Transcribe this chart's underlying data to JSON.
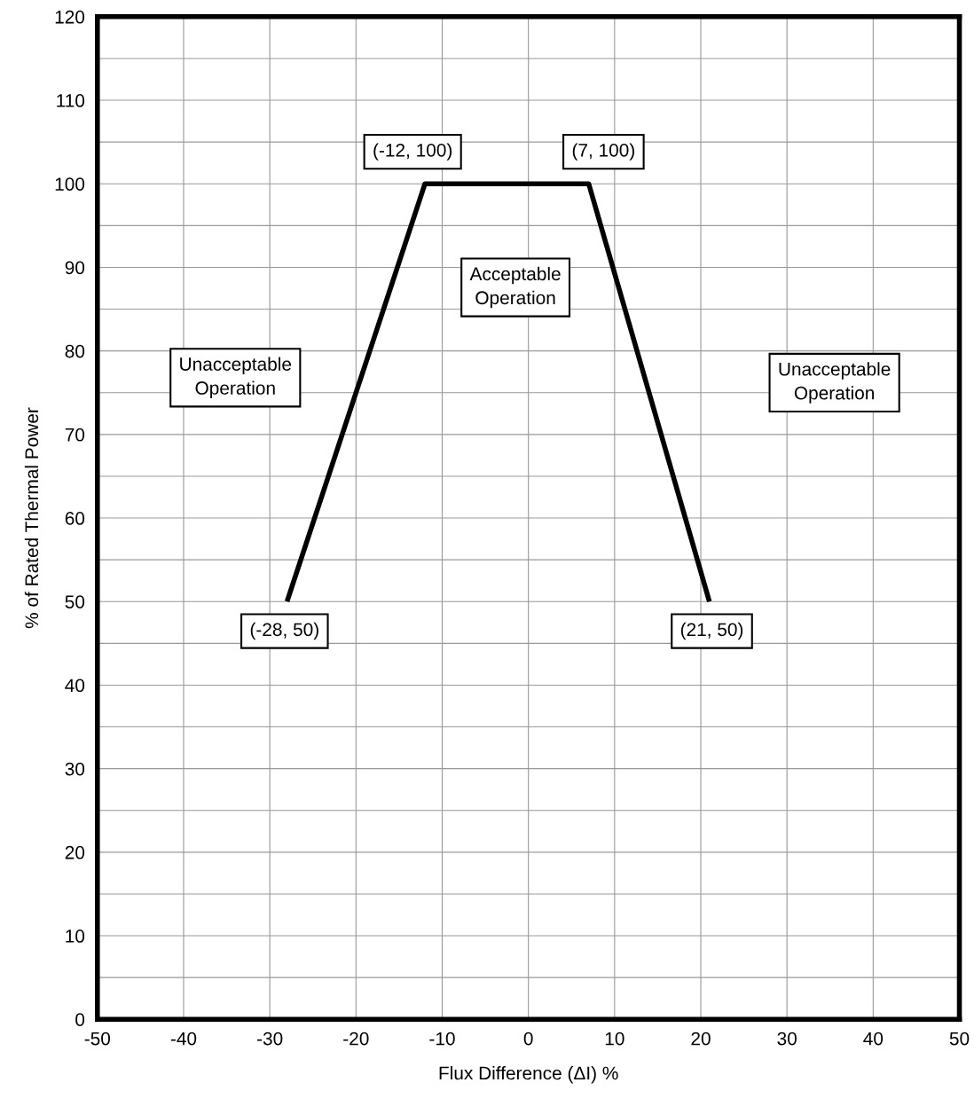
{
  "chart_data": {
    "type": "line",
    "xlabel": "Flux Difference (ΔI) %",
    "ylabel": "% of Rated Thermal Power",
    "x": [
      -28,
      -12,
      7,
      21
    ],
    "series": [
      {
        "color": "#000000",
        "values": [
          50,
          100,
          100,
          50
        ]
      }
    ],
    "xlim": [
      -50,
      50
    ],
    "xticks": [
      -50,
      -40,
      -30,
      -20,
      -10,
      0,
      10,
      20,
      30,
      40,
      50
    ],
    "ylim": [
      0,
      120
    ],
    "yticks": [
      0,
      {
        "value": 5,
        "label": null
      },
      10,
      {
        "value": 15,
        "label": null
      },
      20,
      {
        "value": 25,
        "label": null
      },
      30,
      {
        "value": 35,
        "label": null
      },
      40,
      {
        "value": 45,
        "label": null
      },
      50,
      {
        "value": 55,
        "label": null
      },
      60,
      {
        "value": 65,
        "label": null
      },
      70,
      {
        "value": 75,
        "label": null
      },
      80,
      {
        "value": 85,
        "label": null
      },
      90,
      {
        "value": 95,
        "label": null
      },
      100,
      {
        "value": 105,
        "label": null
      },
      110,
      {
        "value": 115,
        "label": null
      },
      120
    ],
    "grid": true,
    "marker": "none",
    "line_style": "solid",
    "legend": false,
    "annotations": [
      {
        "text": "(-12, 100)",
        "x": -12,
        "y": 100
      },
      {
        "text": "(7, 100)",
        "x": 7,
        "y": 100
      },
      {
        "text": "(-28, 50)",
        "x": -28,
        "y": 50
      },
      {
        "text": "(21, 50)",
        "x": 21,
        "y": 50
      },
      "Unacceptable\nOperation",
      "Acceptable\nOperation",
      "Unacceptable\nOperation"
    ]
  }
}
